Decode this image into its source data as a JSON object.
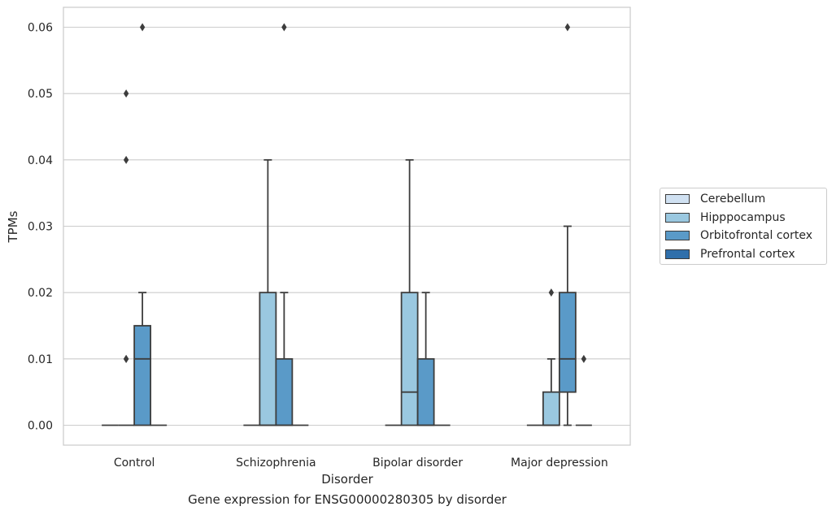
{
  "chart_data": {
    "type": "box",
    "title": "",
    "caption": "Gene expression for ENSG00000280305 by disorder",
    "xlabel": "Disorder",
    "ylabel": "TPMs",
    "ylim": [
      -0.003,
      0.063
    ],
    "y_ticks": [
      "0.00",
      "0.01",
      "0.02",
      "0.03",
      "0.04",
      "0.05",
      "0.06"
    ],
    "grid": "horizontal",
    "legend_position": "right",
    "categories": [
      "Control",
      "Schizophrenia",
      "Bipolar disorder",
      "Major depression"
    ],
    "series": [
      {
        "name": "Cerebellum",
        "color": "#d0e1f2",
        "boxes": [
          {
            "q1": 0,
            "median": 0,
            "q3": 0,
            "whislo": 0,
            "whishi": 0,
            "fliers": []
          },
          {
            "q1": 0,
            "median": 0,
            "q3": 0,
            "whislo": 0,
            "whishi": 0,
            "fliers": []
          },
          {
            "q1": 0,
            "median": 0,
            "q3": 0,
            "whislo": 0,
            "whishi": 0,
            "fliers": []
          },
          {
            "q1": 0,
            "median": 0,
            "q3": 0,
            "whislo": 0,
            "whishi": 0,
            "fliers": []
          }
        ]
      },
      {
        "name": "Hipppocampus",
        "color": "#9ac8e0",
        "boxes": [
          {
            "q1": 0,
            "median": 0,
            "q3": 0,
            "whislo": 0,
            "whishi": 0,
            "fliers": [
              0.01,
              0.01,
              0.04,
              0.05
            ]
          },
          {
            "q1": 0,
            "median": 0,
            "q3": 0.02,
            "whislo": 0,
            "whishi": 0.04,
            "fliers": []
          },
          {
            "q1": 0,
            "median": 0.005,
            "q3": 0.02,
            "whislo": 0,
            "whishi": 0.04,
            "fliers": []
          },
          {
            "q1": 0,
            "median": 0,
            "q3": 0.005,
            "whislo": 0,
            "whishi": 0.01,
            "fliers": [
              0.02
            ]
          }
        ]
      },
      {
        "name": "Orbitofrontal cortex",
        "color": "#5a9ac8",
        "boxes": [
          {
            "q1": 0,
            "median": 0.01,
            "q3": 0.015,
            "whislo": 0,
            "whishi": 0.02,
            "fliers": [
              0.06
            ]
          },
          {
            "q1": 0,
            "median": 0,
            "q3": 0.01,
            "whislo": 0,
            "whishi": 0.02,
            "fliers": [
              0.06
            ]
          },
          {
            "q1": 0,
            "median": 0,
            "q3": 0.01,
            "whislo": 0,
            "whishi": 0.02,
            "fliers": []
          },
          {
            "q1": 0.005,
            "median": 0.01,
            "q3": 0.02,
            "whislo": 0,
            "whishi": 0.03,
            "fliers": [
              0.06
            ]
          }
        ]
      },
      {
        "name": "Prefrontal cortex",
        "color": "#2f6fab",
        "boxes": [
          {
            "q1": 0,
            "median": 0,
            "q3": 0,
            "whislo": 0,
            "whishi": 0,
            "fliers": []
          },
          {
            "q1": 0,
            "median": 0,
            "q3": 0,
            "whislo": 0,
            "whishi": 0,
            "fliers": []
          },
          {
            "q1": 0,
            "median": 0,
            "q3": 0,
            "whislo": 0,
            "whishi": 0,
            "fliers": []
          },
          {
            "q1": 0,
            "median": 0,
            "q3": 0,
            "whislo": 0,
            "whishi": 0,
            "fliers": [
              0.01
            ]
          }
        ]
      }
    ]
  }
}
